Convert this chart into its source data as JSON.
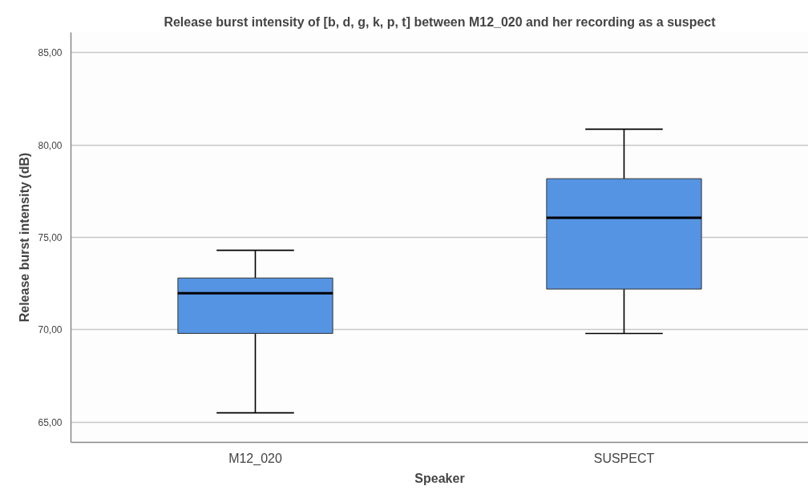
{
  "chart_data": {
    "type": "box",
    "title": "Release burst intensity of [b, d, g, k, p, t] between M12_020 and her recording as a suspect",
    "xlabel": "Speaker",
    "ylabel": "Release burst intensity (dB)",
    "categories": [
      "M12_020",
      "SUSPECT"
    ],
    "series": [
      {
        "color": "#5594e2",
        "boxes": [
          {
            "low": 65.5,
            "q1": 69.8,
            "median": 71.98,
            "q3": 72.8,
            "high": 74.3
          },
          {
            "low": 69.8,
            "q1": 72.2,
            "median": 76.06,
            "q3": 78.18,
            "high": 80.86
          }
        ]
      }
    ],
    "ylim": [
      63.9,
      86.1
    ],
    "yticks": [
      {
        "value": 65,
        "label": "65,00"
      },
      {
        "value": 70,
        "label": "70,00"
      },
      {
        "value": 75,
        "label": "75,00"
      },
      {
        "value": 80,
        "label": "80,00"
      },
      {
        "value": 85,
        "label": "85,00"
      }
    ],
    "grid": "y"
  }
}
